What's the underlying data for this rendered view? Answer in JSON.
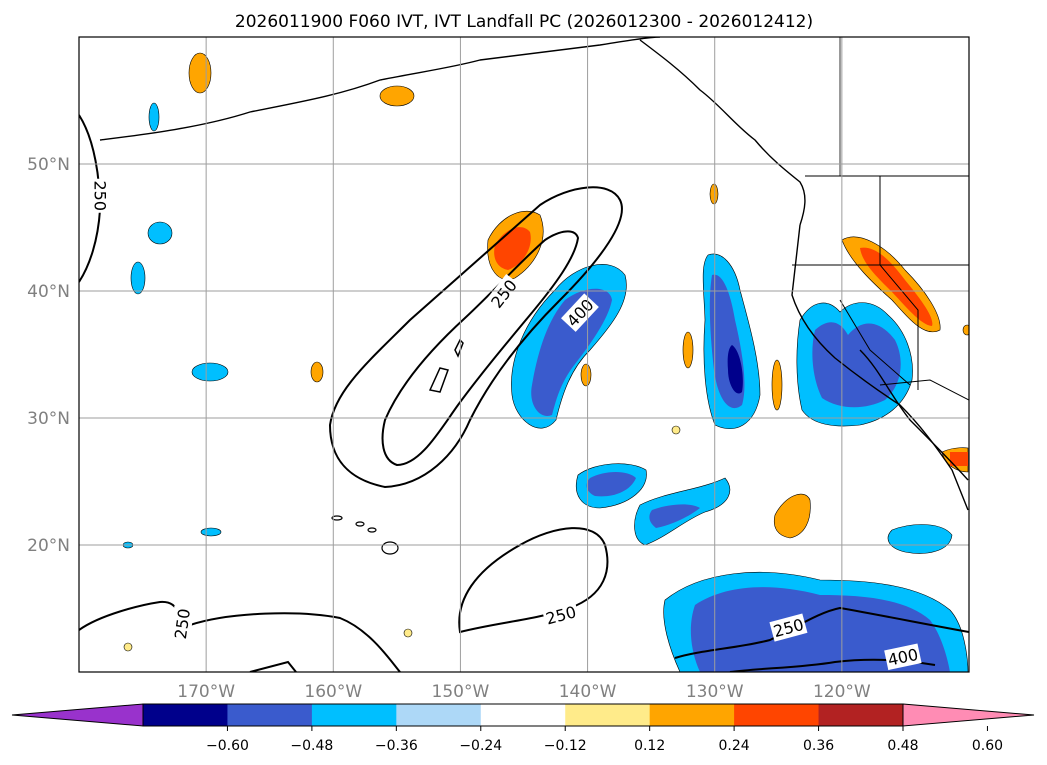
{
  "title": "2026011900 F060 IVT, IVT Landfall PC (2026012300 - 2026012412)",
  "map": {
    "lon_range": [
      -180,
      -110
    ],
    "lat_range": [
      10,
      60
    ],
    "lon_ticks": [
      {
        "lon": -170,
        "label": "170°W"
      },
      {
        "lon": -160,
        "label": "160°W"
      },
      {
        "lon": -150,
        "label": "150°W"
      },
      {
        "lon": -140,
        "label": "140°W"
      },
      {
        "lon": -130,
        "label": "130°W"
      },
      {
        "lon": -120,
        "label": "120°W"
      }
    ],
    "lat_ticks": [
      {
        "lat": 20,
        "label": "20°N"
      },
      {
        "lat": 30,
        "label": "30°N"
      },
      {
        "lat": 40,
        "label": "40°N"
      },
      {
        "lat": 50,
        "label": "50°N"
      }
    ],
    "contour_labels": [
      {
        "text": "250",
        "lon": -178.3,
        "lat": 47.5,
        "rot": 90
      },
      {
        "text": "250",
        "lon": -146.6,
        "lat": 39.8,
        "rot": -52
      },
      {
        "text": "400",
        "lon": -140.6,
        "lat": 38.3,
        "rot": -47
      },
      {
        "text": "250",
        "lon": -171.9,
        "lat": 13.8,
        "rot": -82
      },
      {
        "text": "250",
        "lon": -142.1,
        "lat": 14.5,
        "rot": -15
      },
      {
        "text": "250",
        "lon": -124.2,
        "lat": 13.5,
        "rot": -15
      },
      {
        "text": "400",
        "lon": -115.2,
        "lat": 11.2,
        "rot": -12
      }
    ]
  },
  "colorbar": {
    "ticks": [
      "−0.60",
      "−0.48",
      "−0.36",
      "−0.24",
      "−0.12",
      "0.12",
      "0.24",
      "0.36",
      "0.48",
      "0.60"
    ],
    "colors": [
      "#9932cc",
      "#00008b",
      "#3a5bcd",
      "#00bfff",
      "#add8f7",
      "#ffffff",
      "#ffeb8a",
      "#ffa500",
      "#ff4500",
      "#b22222",
      "#ff8cb4"
    ]
  }
}
